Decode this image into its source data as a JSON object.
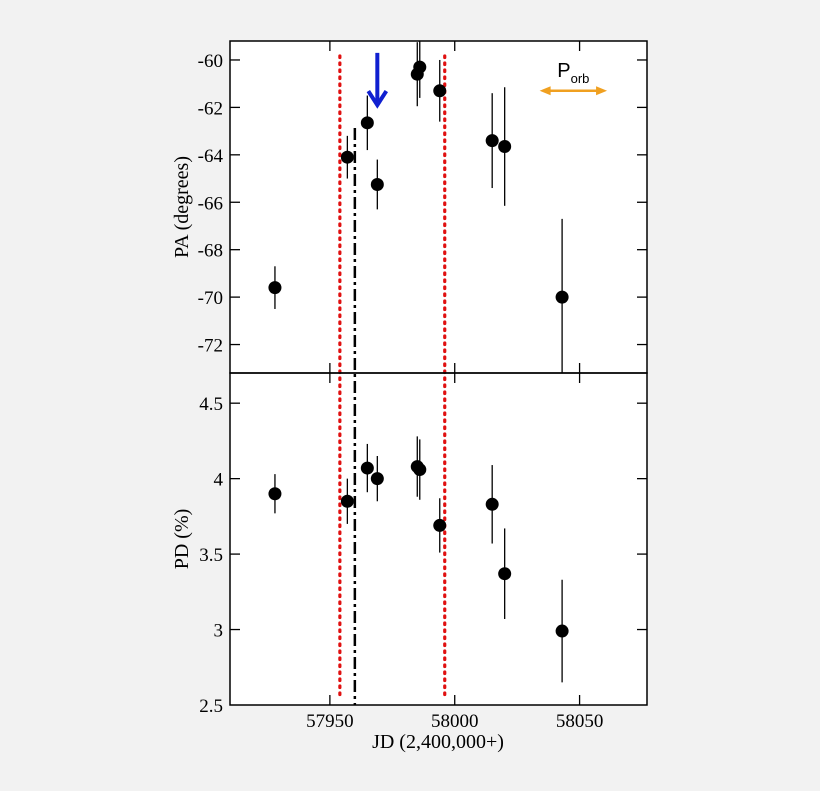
{
  "chart_data": [
    {
      "type": "scatter",
      "panel": "top",
      "ylabel": "PA (degrees)",
      "xlim": [
        57910,
        58077
      ],
      "ylim": [
        -73.2,
        -59.2
      ],
      "yticks": [
        -60,
        -62,
        -64,
        -66,
        -68,
        -70,
        -72
      ],
      "ytick_labels": [
        "-60",
        "-62",
        "-64",
        "-66",
        "-68",
        "-70",
        "-72"
      ],
      "points": [
        {
          "x": 57928,
          "y": -69.6,
          "yerr": 0.9
        },
        {
          "x": 57957,
          "y": -64.1,
          "yerr": 0.9
        },
        {
          "x": 57965,
          "y": -62.65,
          "yerr": 1.15
        },
        {
          "x": 57969,
          "y": -65.25,
          "yerr": 1.05
        },
        {
          "x": 57985,
          "y": -60.6,
          "yerr": 1.35
        },
        {
          "x": 57986,
          "y": -60.3,
          "yerr": 1.3
        },
        {
          "x": 57994,
          "y": -61.3,
          "yerr": 1.3
        },
        {
          "x": 58015,
          "y": -63.4,
          "yerr": 2.0
        },
        {
          "x": 58020,
          "y": -63.65,
          "yerr": 2.5
        },
        {
          "x": 58043,
          "y": -70.0,
          "yerr": 3.3
        }
      ],
      "annotation": {
        "label": "P",
        "subscript": "orb",
        "x_start": 58034,
        "x_end": 58061,
        "y": -61.3,
        "color": "#f0a020"
      },
      "arrow": {
        "x": 57969,
        "y_from": -59.7,
        "y_to": -61.9,
        "color": "#1020d0"
      }
    },
    {
      "type": "scatter",
      "panel": "bottom",
      "ylabel": "PD (%)",
      "xlabel": "JD (2,400,000+)",
      "xlim": [
        57910,
        58077
      ],
      "ylim": [
        2.5,
        4.7
      ],
      "xticks": [
        57950,
        58000,
        58050
      ],
      "xtick_labels": [
        "57950",
        "58000",
        "58050"
      ],
      "yticks": [
        2.5,
        3,
        3.5,
        4,
        4.5
      ],
      "ytick_labels": [
        "2.5",
        "3",
        "3.5",
        "4",
        "4.5"
      ],
      "points": [
        {
          "x": 57928,
          "y": 3.9,
          "yerr": 0.13
        },
        {
          "x": 57957,
          "y": 3.85,
          "yerr": 0.15
        },
        {
          "x": 57965,
          "y": 4.07,
          "yerr": 0.16
        },
        {
          "x": 57969,
          "y": 4.0,
          "yerr": 0.15
        },
        {
          "x": 57985,
          "y": 4.08,
          "yerr": 0.2
        },
        {
          "x": 57986,
          "y": 4.06,
          "yerr": 0.2
        },
        {
          "x": 57994,
          "y": 3.69,
          "yerr": 0.18
        },
        {
          "x": 58015,
          "y": 3.83,
          "yerr": 0.26
        },
        {
          "x": 58020,
          "y": 3.37,
          "yerr": 0.3
        },
        {
          "x": 58043,
          "y": 2.99,
          "yerr": 0.34
        }
      ]
    }
  ],
  "vlines": {
    "red_dotted": [
      57954,
      57996
    ],
    "black_dashdot": [
      57960
    ]
  },
  "colors": {
    "points": "#000000",
    "red_line": "#e01010",
    "black_line": "#000000"
  }
}
